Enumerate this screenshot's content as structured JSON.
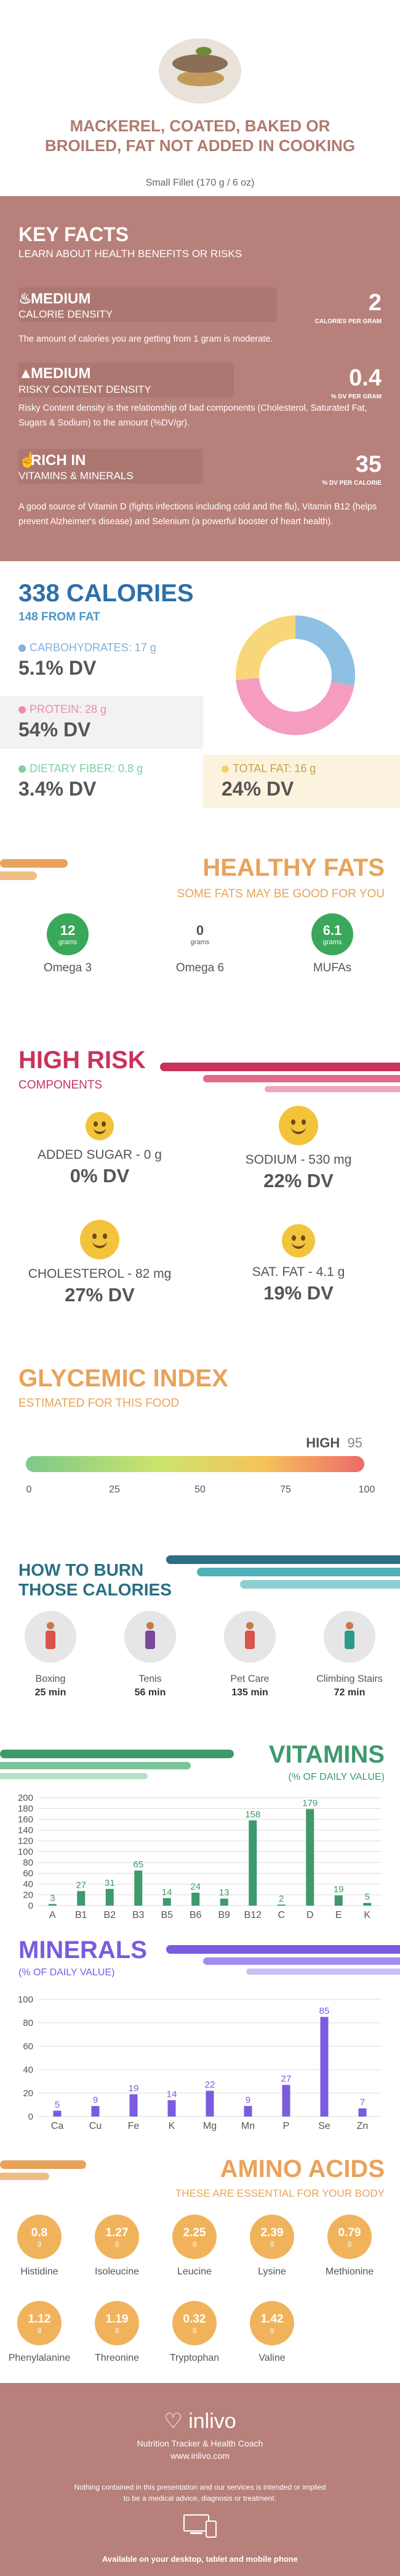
{
  "header": {
    "title": "MACKEREL, COATED, BAKED OR BROILED, FAT NOT ADDED IN COOKING",
    "serving": "Small Fillet (170 g / 6 oz)"
  },
  "key_facts": {
    "title": "KEY FACTS",
    "subtitle": "LEARN ABOUT HEALTH BENEFITS OR RISKS",
    "items": [
      {
        "level": "MEDIUM",
        "label": "CALORIE DENSITY",
        "value": "2",
        "unit": "CALORIES PER GRAM",
        "text": "The amount of calories you are getting from 1 gram is moderate.",
        "icon": "fire-icon"
      },
      {
        "level": "MEDIUM",
        "label": "RISKY CONTENT DENSITY",
        "value": "0.4",
        "unit": "% DV PER GRAM",
        "text": "Risky Content density is the relationship of bad components (Cholesterol, Saturated Fat, Sugars & Sodium) to the amount (%DV/gr).",
        "icon": "warning-icon"
      },
      {
        "level": "RICH  IN",
        "label": "VITAMINS & MINERALS",
        "value": "35",
        "unit": "% DV PER CALORIE",
        "text": "A good source of Vitamin D (fights infections including cold and the flu), Vitamin B12 (helps prevent Alzheimer's disease) and Selenium (a powerful booster of heart health).",
        "icon": "thumbs-up-icon"
      }
    ]
  },
  "calories": {
    "title": "338 CALORIES",
    "from_fat": "148 FROM FAT",
    "macros": [
      {
        "label": "CARBOHYDRATES: 17 g",
        "dv": "5.1% DV",
        "color": "#7fb2dd"
      },
      {
        "label": "PROTEIN: 28 g",
        "dv": "54% DV",
        "color": "#f08ab0"
      },
      {
        "label": "DIETARY FIBER: 0.8 g",
        "dv": "3.4% DV",
        "color": "#7fcfa0"
      },
      {
        "label": "TOTAL FAT: 16 g",
        "dv": "24% DV",
        "color": "#f5d06a"
      }
    ],
    "donut": [
      {
        "name": "carbs",
        "value": 17,
        "color": "#8ec0e4"
      },
      {
        "name": "protein",
        "value": 28,
        "color": "#f59cc0"
      },
      {
        "name": "fat",
        "value": 16,
        "color": "#f7d77a"
      }
    ]
  },
  "healthy_fats": {
    "title": "HEALTHY FATS",
    "subtitle": "SOME FATS MAY BE GOOD FOR YOU",
    "items": [
      {
        "value": "12",
        "unit": "grams",
        "name": "Omega 3",
        "active": true
      },
      {
        "value": "0",
        "unit": "grams",
        "name": "Omega 6",
        "active": false
      },
      {
        "value": "6.1",
        "unit": "grams",
        "name": "MUFAs",
        "active": true
      }
    ]
  },
  "high_risk": {
    "title": "HIGH RISK",
    "subtitle": "COMPONENTS",
    "items": [
      {
        "label": "ADDED SUGAR - 0 g",
        "dv": "0% DV"
      },
      {
        "label": "SODIUM - 530 mg",
        "dv": "22% DV"
      },
      {
        "label": "CHOLESTEROL - 82 mg",
        "dv": "27% DV"
      },
      {
        "label": "SAT. FAT - 4.1 g",
        "dv": "19% DV"
      }
    ]
  },
  "glycemic": {
    "title": "GLYCEMIC INDEX",
    "subtitle": "ESTIMATED FOR THIS FOOD",
    "level": "HIGH",
    "value": "95",
    "ticks": [
      "0",
      "25",
      "50",
      "75",
      "100"
    ]
  },
  "burn": {
    "title1": "HOW TO BURN",
    "title2": "THOSE CALORIES",
    "items": [
      {
        "name": "Boxing",
        "minutes": "25 min",
        "color": "#d9534f"
      },
      {
        "name": "Tenis",
        "minutes": "56 min",
        "color": "#7a4a9a"
      },
      {
        "name": "Pet Care",
        "minutes": "135 min",
        "color": "#d9534f"
      },
      {
        "name": "Climbing Stairs",
        "minutes": "72 min",
        "color": "#2a9a8a"
      }
    ]
  },
  "chart_data": [
    {
      "type": "bar",
      "title": "VITAMINS",
      "subtitle": "(% OF DAILY VALUE)",
      "categories": [
        "A",
        "B1",
        "B2",
        "B3",
        "B5",
        "B6",
        "B9",
        "B12",
        "C",
        "D",
        "E",
        "K"
      ],
      "values": [
        3,
        27,
        31,
        65,
        14,
        24,
        13,
        158,
        2,
        179,
        19,
        5
      ],
      "ylim": [
        0,
        200
      ],
      "yticks": [
        "0",
        "20",
        "40",
        "60",
        "80",
        "100",
        "120",
        "140",
        "160",
        "180",
        "200"
      ],
      "color": "#3e9a6b"
    },
    {
      "type": "bar",
      "title": "MINERALS",
      "subtitle": "(% OF DAILY VALUE)",
      "categories": [
        "Ca",
        "Cu",
        "Fe",
        "K",
        "Mg",
        "Mn",
        "P",
        "Se",
        "Zn"
      ],
      "values": [
        5,
        9,
        19,
        14,
        22,
        9,
        27,
        85,
        7
      ],
      "ylim": [
        0,
        100
      ],
      "yticks": [
        "0",
        "20",
        "40",
        "60",
        "80",
        "100"
      ],
      "color": "#7b5be0"
    }
  ],
  "amino": {
    "title": "AMINO ACIDS",
    "subtitle": "THESE ARE ESSENTIAL FOR YOUR BODY",
    "unit": "g",
    "items": [
      {
        "value": "0.8",
        "name": "Histidine"
      },
      {
        "value": "1.27",
        "name": "Isoleucine"
      },
      {
        "value": "2.25",
        "name": "Leucine"
      },
      {
        "value": "2.39",
        "name": "Lysine"
      },
      {
        "value": "0.79",
        "name": "Methionine"
      },
      {
        "value": "1.12",
        "name": "Phenylalanine"
      },
      {
        "value": "1.19",
        "name": "Threonine"
      },
      {
        "value": "0.32",
        "name": "Tryptophan"
      },
      {
        "value": "1.42",
        "name": "Valine"
      }
    ]
  },
  "footer": {
    "logo": "inlivo",
    "tagline": "Nutrition Tracker & Health Coach",
    "url": "www.inlivo.com",
    "disclaimer": "Nothing contained in this presentation and our services is intended or implied to be a medical advice, diagnosis or treatment.",
    "available": "Available on your desktop, tablet and mobile phone"
  }
}
